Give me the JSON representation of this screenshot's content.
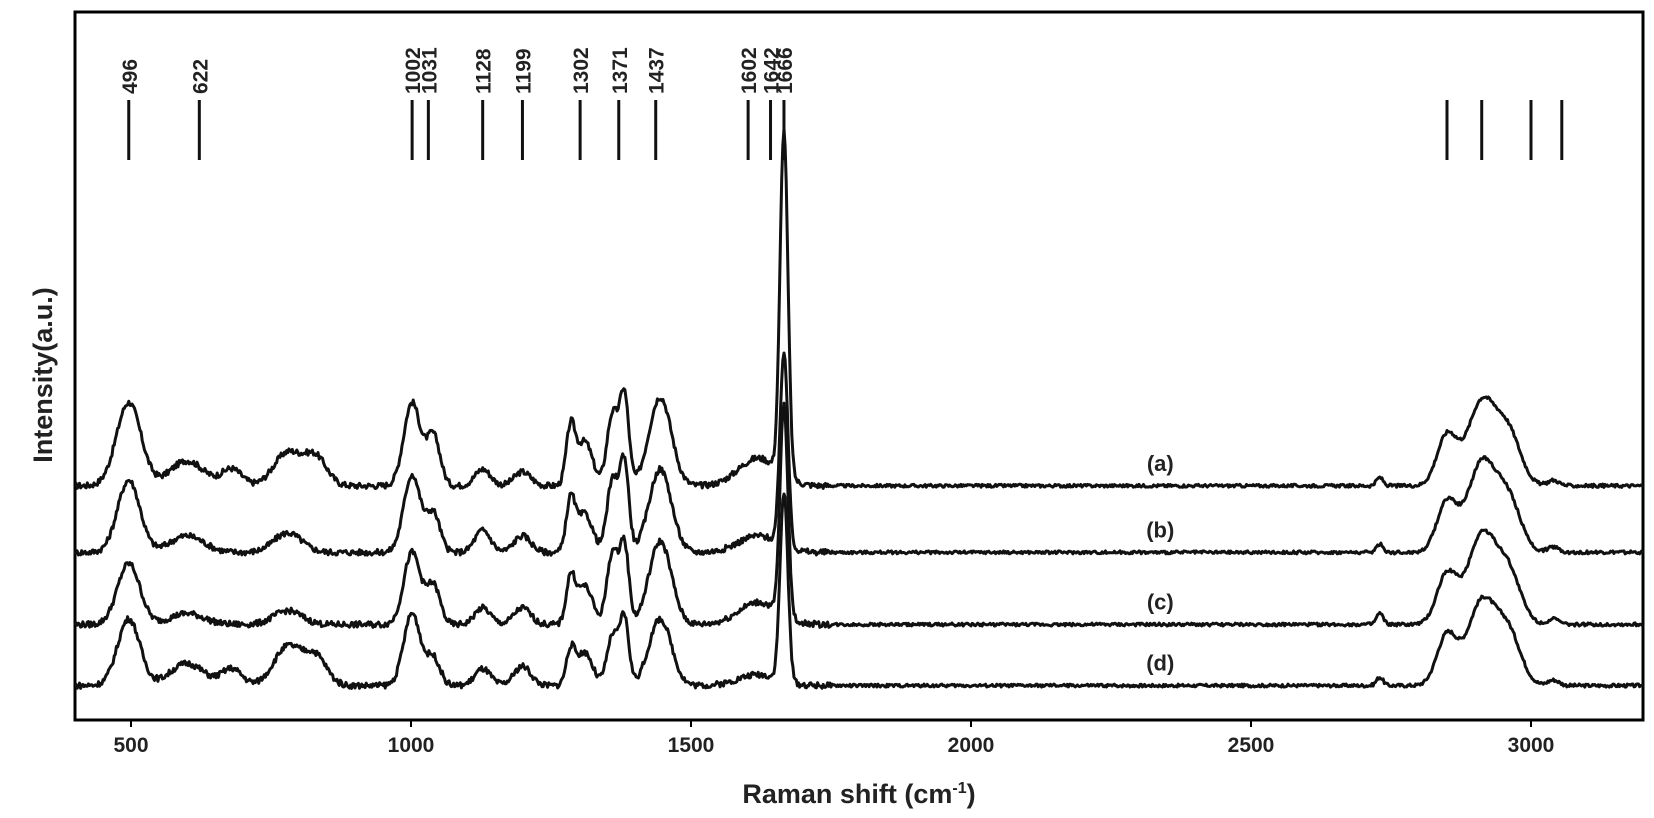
{
  "chart_data": {
    "type": "line",
    "title": "",
    "xlabel": "Raman shift (cm",
    "xlabel_superscript": "-1",
    "xlabel_suffix": ")",
    "ylabel": "Intensity(a.u.)",
    "xlim": [
      400,
      3200
    ],
    "x_ticks": [
      500,
      1000,
      1500,
      2000,
      2500,
      3000
    ],
    "y_ticks_shown": false,
    "grid": false,
    "legend": "none",
    "peak_markers": [
      {
        "position": 496,
        "label": "496"
      },
      {
        "position": 622,
        "label": "622"
      },
      {
        "position": 1002,
        "label": "1002"
      },
      {
        "position": 1031,
        "label": "1031"
      },
      {
        "position": 1128,
        "label": "1128"
      },
      {
        "position": 1199,
        "label": "1199"
      },
      {
        "position": 1302,
        "label": "1302"
      },
      {
        "position": 1371,
        "label": "1371"
      },
      {
        "position": 1437,
        "label": "1437"
      },
      {
        "position": 1602,
        "label": "1602"
      },
      {
        "position": 1642,
        "label": "1642"
      },
      {
        "position": 1666,
        "label": "1666"
      },
      {
        "position": 2850,
        "label": ""
      },
      {
        "position": 2912,
        "label": ""
      },
      {
        "position": 3000,
        "label": ""
      },
      {
        "position": 3055,
        "label": ""
      }
    ],
    "series": [
      {
        "label": "(a)",
        "label_x": 2338,
        "baseline": 0.395,
        "peaks": [
          [
            496,
            0.15,
            22
          ],
          [
            600,
            0.045,
            30
          ],
          [
            680,
            0.03,
            18
          ],
          [
            780,
            0.06,
            25
          ],
          [
            830,
            0.05,
            20
          ],
          [
            1002,
            0.15,
            15
          ],
          [
            1040,
            0.09,
            12
          ],
          [
            1128,
            0.03,
            14
          ],
          [
            1199,
            0.025,
            15
          ],
          [
            1285,
            0.1,
            8
          ],
          [
            1310,
            0.08,
            14
          ],
          [
            1360,
            0.13,
            10
          ],
          [
            1381,
            0.16,
            8
          ],
          [
            1445,
            0.16,
            20
          ],
          [
            1620,
            0.05,
            35
          ],
          [
            1666,
            0.62,
            7
          ],
          [
            2730,
            0.015,
            6
          ],
          [
            2850,
            0.09,
            18
          ],
          [
            2912,
            0.15,
            25
          ],
          [
            2960,
            0.09,
            22
          ],
          [
            3040,
            0.01,
            10
          ]
        ],
        "noise": 0.006
      },
      {
        "label": "(b)",
        "label_x": 2338,
        "baseline": 0.275,
        "peaks": [
          [
            496,
            0.13,
            20
          ],
          [
            600,
            0.03,
            30
          ],
          [
            780,
            0.035,
            25
          ],
          [
            1002,
            0.14,
            15
          ],
          [
            1040,
            0.07,
            12
          ],
          [
            1128,
            0.04,
            14
          ],
          [
            1199,
            0.03,
            15
          ],
          [
            1285,
            0.09,
            8
          ],
          [
            1310,
            0.07,
            14
          ],
          [
            1360,
            0.13,
            10
          ],
          [
            1381,
            0.16,
            8
          ],
          [
            1445,
            0.15,
            20
          ],
          [
            1620,
            0.03,
            35
          ],
          [
            1666,
            0.35,
            7
          ],
          [
            2730,
            0.015,
            6
          ],
          [
            2850,
            0.09,
            18
          ],
          [
            2912,
            0.16,
            25
          ],
          [
            2960,
            0.09,
            22
          ],
          [
            3040,
            0.01,
            10
          ]
        ],
        "noise": 0.006
      },
      {
        "label": "(c)",
        "label_x": 2338,
        "baseline": 0.145,
        "peaks": [
          [
            496,
            0.11,
            20
          ],
          [
            600,
            0.02,
            30
          ],
          [
            780,
            0.025,
            25
          ],
          [
            1002,
            0.13,
            15
          ],
          [
            1040,
            0.07,
            12
          ],
          [
            1128,
            0.03,
            14
          ],
          [
            1199,
            0.03,
            15
          ],
          [
            1285,
            0.08,
            8
          ],
          [
            1310,
            0.07,
            14
          ],
          [
            1360,
            0.13,
            10
          ],
          [
            1381,
            0.14,
            8
          ],
          [
            1445,
            0.15,
            20
          ],
          [
            1620,
            0.04,
            35
          ],
          [
            1666,
            0.38,
            7
          ],
          [
            2730,
            0.02,
            6
          ],
          [
            2850,
            0.09,
            18
          ],
          [
            2912,
            0.16,
            25
          ],
          [
            2960,
            0.09,
            22
          ],
          [
            3040,
            0.01,
            10
          ]
        ],
        "noise": 0.006
      },
      {
        "label": "(d)",
        "label_x": 2338,
        "baseline": 0.035,
        "peaks": [
          [
            496,
            0.12,
            20
          ],
          [
            600,
            0.04,
            30
          ],
          [
            680,
            0.03,
            18
          ],
          [
            780,
            0.07,
            25
          ],
          [
            830,
            0.05,
            20
          ],
          [
            1002,
            0.13,
            15
          ],
          [
            1040,
            0.05,
            12
          ],
          [
            1128,
            0.03,
            14
          ],
          [
            1199,
            0.035,
            15
          ],
          [
            1285,
            0.06,
            8
          ],
          [
            1310,
            0.06,
            14
          ],
          [
            1360,
            0.09,
            10
          ],
          [
            1381,
            0.12,
            8
          ],
          [
            1445,
            0.12,
            20
          ],
          [
            1620,
            0.02,
            35
          ],
          [
            1666,
            0.34,
            7
          ],
          [
            2730,
            0.015,
            6
          ],
          [
            2850,
            0.09,
            18
          ],
          [
            2912,
            0.15,
            25
          ],
          [
            2960,
            0.09,
            22
          ],
          [
            3040,
            0.01,
            10
          ]
        ],
        "noise": 0.006
      }
    ]
  }
}
